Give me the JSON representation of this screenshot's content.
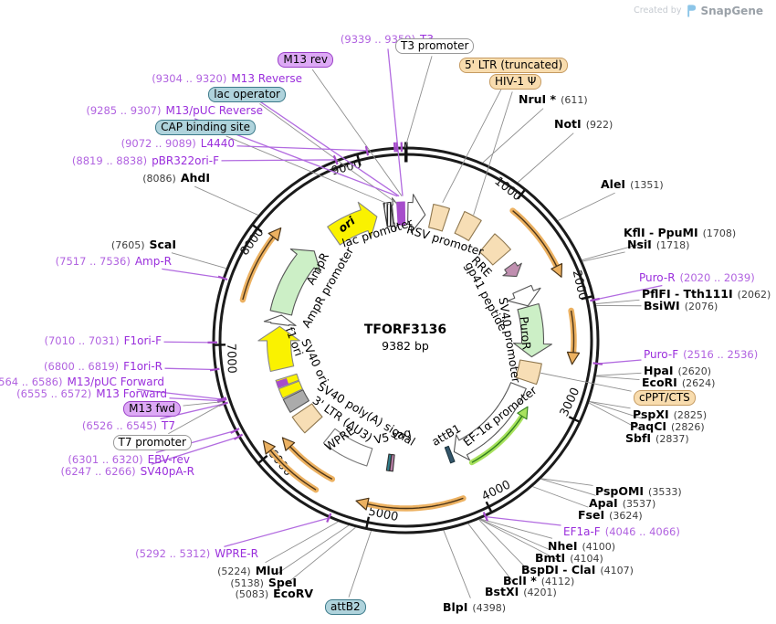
{
  "watermark": {
    "created_by": "Created by",
    "brand": "SnapGene"
  },
  "plasmid": {
    "name": "TFORF3136",
    "size_label": "9382 bp",
    "length": 9382
  },
  "ticks": [
    1000,
    2000,
    3000,
    4000,
    5000,
    6000,
    7000,
    8000,
    9000
  ],
  "callouts": [
    {
      "pos": "(9339 .. 9359)",
      "name": "T3",
      "kind": "primer"
    },
    {
      "name": "M13 rev",
      "kind": "primer-label-box"
    },
    {
      "pos": "(9304 .. 9320)",
      "name": "M13 Reverse",
      "kind": "primer"
    },
    {
      "name": "lac operator",
      "kind": "feature-box"
    },
    {
      "pos": "(9285 .. 9307)",
      "name": "M13/pUC Reverse",
      "kind": "primer"
    },
    {
      "name": "CAP binding site",
      "kind": "feature-box"
    },
    {
      "pos": "(9072 .. 9089)",
      "name": "L4440",
      "kind": "primer"
    },
    {
      "pos": "(8819 .. 8838)",
      "name": "pBR322ori-F",
      "kind": "primer"
    },
    {
      "pos": "(8086)",
      "name": "AhdI",
      "kind": "enzyme"
    },
    {
      "pos": "(7605)",
      "name": "ScaI",
      "kind": "enzyme"
    },
    {
      "pos": "(7517 .. 7536)",
      "name": "Amp-R",
      "kind": "primer"
    },
    {
      "pos": "(7010 .. 7031)",
      "name": "F1ori-F",
      "kind": "primer"
    },
    {
      "pos": "(6800 .. 6819)",
      "name": "F1ori-R",
      "kind": "primer"
    },
    {
      "pos": "(6564 .. 6586)",
      "name": "M13/pUC Forward",
      "kind": "primer"
    },
    {
      "pos": "(6555 .. 6572)",
      "name": "M13 Forward",
      "kind": "primer"
    },
    {
      "name": "M13 fwd",
      "kind": "primer-label-box"
    },
    {
      "pos": "(6526 .. 6545)",
      "name": "T7",
      "kind": "primer"
    },
    {
      "name": "T7 promoter",
      "kind": "feature-box"
    },
    {
      "pos": "(6301 .. 6320)",
      "name": "EBV-rev",
      "kind": "primer"
    },
    {
      "pos": "(6247 .. 6266)",
      "name": "SV40pA-R",
      "kind": "primer"
    },
    {
      "pos": "(5292 .. 5312)",
      "name": "WPRE-R",
      "kind": "primer"
    },
    {
      "pos": "(5224)",
      "name": "MluI",
      "kind": "enzyme"
    },
    {
      "pos": "(5138)",
      "name": "SpeI",
      "kind": "enzyme"
    },
    {
      "pos": "(5083)",
      "name": "EcoRV",
      "kind": "enzyme"
    },
    {
      "name": "attB2",
      "kind": "feature-box"
    },
    {
      "name": "BlpI",
      "pos": "(4398)",
      "kind": "enzyme"
    },
    {
      "name": "BstXI",
      "pos": "(4201)",
      "kind": "enzyme"
    },
    {
      "name": "BclI *",
      "pos": "(4112)",
      "kind": "enzyme"
    },
    {
      "name": "BspDI - ClaI",
      "pos": "(4107)",
      "kind": "enzyme"
    },
    {
      "name": "BmtI",
      "pos": "(4104)",
      "kind": "enzyme"
    },
    {
      "name": "NheI",
      "pos": "(4100)",
      "kind": "enzyme"
    },
    {
      "name": "EF1a-F",
      "pos": "(4046 .. 4066)",
      "kind": "primer"
    },
    {
      "name": "FseI",
      "pos": "(3624)",
      "kind": "enzyme"
    },
    {
      "name": "ApaI",
      "pos": "(3537)",
      "kind": "enzyme"
    },
    {
      "name": "PspOMI",
      "pos": "(3533)",
      "kind": "enzyme"
    },
    {
      "name": "SbfI",
      "pos": "(2837)",
      "kind": "enzyme"
    },
    {
      "name": "PaqCI",
      "pos": "(2826)",
      "kind": "enzyme"
    },
    {
      "name": "PspXI",
      "pos": "(2825)",
      "kind": "enzyme"
    },
    {
      "name": "cPPT/CTS",
      "kind": "feature-box"
    },
    {
      "name": "EcoRI",
      "pos": "(2624)",
      "kind": "enzyme"
    },
    {
      "name": "HpaI",
      "pos": "(2620)",
      "kind": "enzyme"
    },
    {
      "name": "Puro-F",
      "pos": "(2516 .. 2536)",
      "kind": "primer"
    },
    {
      "name": "BsiWI",
      "pos": "(2076)",
      "kind": "enzyme"
    },
    {
      "name": "PflFI - Tth111I",
      "pos": "(2062)",
      "kind": "enzyme"
    },
    {
      "name": "Puro-R",
      "pos": "(2020 .. 2039)",
      "kind": "primer"
    },
    {
      "name": "NsiI",
      "pos": "(1718)",
      "kind": "enzyme"
    },
    {
      "name": "KflI - PpuMI",
      "pos": "(1708)",
      "kind": "enzyme"
    },
    {
      "name": "AleI",
      "pos": "(1351)",
      "kind": "enzyme"
    },
    {
      "name": "NotI",
      "pos": "(922)",
      "kind": "enzyme"
    },
    {
      "name": "NruI *",
      "pos": "(611)",
      "kind": "enzyme"
    },
    {
      "name": "HIV-1 Ψ",
      "kind": "feature-box"
    },
    {
      "name": "5' LTR (truncated)",
      "kind": "feature-box"
    },
    {
      "name": "T3 promoter",
      "kind": "feature-box"
    }
  ],
  "inner_labels": [
    "lac promoter",
    "RSV promoter",
    "RRE",
    "gp41 peptide",
    "SV40 promoter",
    "PuroR",
    "EF-1α promoter",
    "attB1",
    "V5 tag",
    "WPRE",
    "3' LTR (ΔU3)",
    "SV40 poly(A) signal",
    "SV40 ori",
    "f1 ori",
    "AmpR promoter",
    "AmpR",
    "ori"
  ],
  "features": [
    {
      "name": "rsv-promoter",
      "type": "arrow",
      "start": 25,
      "end": 230,
      "r": 139,
      "w": 12,
      "fill": "#FFFFFF"
    },
    {
      "name": "5-ltr-truncated",
      "type": "box",
      "start": 300,
      "end": 480,
      "r": 139,
      "w": 13,
      "fill": "#F7DEB5",
      "stroke": "#8f7850"
    },
    {
      "name": "hiv1-psi",
      "type": "box",
      "start": 640,
      "end": 840,
      "r": 142,
      "w": 13,
      "fill": "#F7DEB5",
      "stroke": "#8f7850"
    },
    {
      "name": "rre",
      "type": "box",
      "start": 1040,
      "end": 1280,
      "r": 139,
      "w": 13,
      "fill": "#F7DEB5",
      "stroke": "#8f7850"
    },
    {
      "name": "gp41-peptide",
      "type": "arrow",
      "start": 1420,
      "end": 1565,
      "r": 140,
      "w": 7,
      "fill": "#C08FB0",
      "stroke": "#555"
    },
    {
      "name": "sv40-promoter",
      "type": "arrow",
      "start": 1730,
      "end": 1935,
      "r": 139,
      "w": 11,
      "fill": "#FFFFFF"
    },
    {
      "name": "puror",
      "type": "arrow",
      "start": 1945,
      "end": 2540,
      "r": 139,
      "w": 12,
      "fill": "#CCEFC6"
    },
    {
      "name": "cppt-cts",
      "type": "box",
      "start": 2600,
      "end": 2830,
      "r": 139,
      "w": 12,
      "fill": "#F7DEB5",
      "stroke": "#8f7850"
    },
    {
      "name": "ef1a-promoter",
      "type": "arrow",
      "start": 2915,
      "end": 4080,
      "r": 133,
      "w": 9,
      "fill": "#FFFFFF"
    },
    {
      "name": "orf-green",
      "type": "orf",
      "start": 3090,
      "end": 3950,
      "r": 152,
      "dir": -1,
      "c1": "#A8E25E",
      "c2": "#2F7D1D"
    },
    {
      "name": "attb1",
      "type": "box",
      "start": 4118,
      "end": 4168,
      "r": 134,
      "w": 9,
      "fill": "#33566B",
      "stroke": "#1e3640"
    },
    {
      "name": "v5-tag-pink",
      "type": "box",
      "start": 4838,
      "end": 4874,
      "r": 135,
      "w": 9,
      "fill": "#BA7FA8",
      "stroke": "#333"
    },
    {
      "name": "v5-tag-teal",
      "type": "box",
      "start": 4878,
      "end": 4912,
      "r": 135,
      "w": 9,
      "fill": "#2E7E8C",
      "stroke": "#333"
    },
    {
      "name": "wpre",
      "type": "box",
      "start": 5140,
      "end": 5700,
      "r": 134,
      "w": 10,
      "fill": "#FFFFFF",
      "stroke": "#777"
    },
    {
      "name": "3-ltr-du3",
      "type": "box",
      "start": 5930,
      "end": 6150,
      "r": 137,
      "w": 13,
      "fill": "#F7DEB5",
      "stroke": "#8f7850"
    },
    {
      "name": "sv40-polya",
      "type": "box",
      "start": 6205,
      "end": 6365,
      "r": 137,
      "w": 12,
      "fill": "#ABABAB",
      "stroke": "#555"
    },
    {
      "name": "sv40-ori",
      "type": "box",
      "start": 6380,
      "end": 6492,
      "r": 137,
      "w": 12,
      "fill": "#FAF200",
      "stroke": "#888"
    },
    {
      "name": "sv40-ori-2",
      "type": "box",
      "start": 6504,
      "end": 6590,
      "r": 137,
      "w": 12,
      "fill": "#FAF200",
      "stroke": "#888"
    },
    {
      "name": "primer-stripe",
      "type": "stripe",
      "start": 6516,
      "r": 143,
      "w": 6,
      "fill": "#A64CCB"
    },
    {
      "name": "primer-stripe",
      "type": "stripe",
      "start": 6540,
      "r": 143,
      "w": 6,
      "fill": "#A64CCB"
    },
    {
      "name": "primer-stripe",
      "type": "stripe",
      "start": 6564,
      "r": 143,
      "w": 6,
      "fill": "#A64CCB"
    },
    {
      "name": "f1-ori",
      "type": "arrow",
      "start": 6700,
      "end": 7200,
      "r": 139,
      "w": 13,
      "fill": "#FAF200",
      "stroke": "#888"
    },
    {
      "name": "ampr-promoter",
      "type": "arrow",
      "start": 7225,
      "end": 7335,
      "r": 139,
      "w": 10,
      "fill": "#FFFFFF"
    },
    {
      "name": "ampr",
      "type": "arrow",
      "start": 7360,
      "end": 8190,
      "r": 140,
      "w": 12,
      "fill": "#CCEFC6"
    },
    {
      "name": "ori",
      "type": "arrow",
      "start": 8480,
      "end": 9040,
      "r": 139,
      "w": 12,
      "fill": "#FAF200",
      "stroke": "#888"
    },
    {
      "name": "cap-binding-site",
      "type": "box",
      "start": 9140,
      "end": 9220,
      "r": 139,
      "w": 13,
      "fill": "hatch",
      "stroke": "#333"
    },
    {
      "name": "lac-promoter",
      "type": "arrow",
      "start": 9230,
      "end": 9365,
      "r": 139,
      "w": 10,
      "fill": "#FFFFFF"
    },
    {
      "name": "lac-operator-stripe",
      "type": "stripe",
      "start": 9292,
      "r": 139,
      "w": 13,
      "fill": "#A64CCB"
    },
    {
      "name": "lac-operator-stripe",
      "type": "stripe",
      "start": 9316,
      "r": 139,
      "w": 13,
      "fill": "#A64CCB"
    },
    {
      "name": "m13-site-stripe",
      "type": "stripe",
      "start": 9340,
      "r": 139,
      "w": 13,
      "fill": "#A64CCB"
    },
    {
      "name": "m13-site-stripe",
      "type": "stripe",
      "start": 9362,
      "r": 139,
      "w": 13,
      "fill": "#A64CCB"
    }
  ],
  "orfs": [
    {
      "start": 1030,
      "end": 1770,
      "r": 184,
      "dir": 1
    },
    {
      "start": 2080,
      "end": 2560,
      "r": 184,
      "dir": 1
    },
    {
      "start": 4170,
      "end": 5140,
      "r": 184,
      "dir": 1
    },
    {
      "start": 5420,
      "end": 6040,
      "r": 172,
      "dir": 1
    },
    {
      "start": 5500,
      "end": 6120,
      "r": 191,
      "dir": 1
    },
    {
      "start": 7400,
      "end": 8130,
      "r": 184,
      "dir": 1
    }
  ],
  "colors": {
    "ring": "#1b1b1b",
    "orf_fill": "#ECB161",
    "orf_line": "#4A3418",
    "primer_line": "#B26BE0",
    "primer_tick": "#A64CCB",
    "leader_line": "#8f8f8f",
    "primer_text": "#9A2EDC",
    "enzyme_text": "#000000",
    "tan_box": "#F8DCAE",
    "teal_box": "#AFD3DC",
    "purple_box": "#DDA9F5"
  }
}
